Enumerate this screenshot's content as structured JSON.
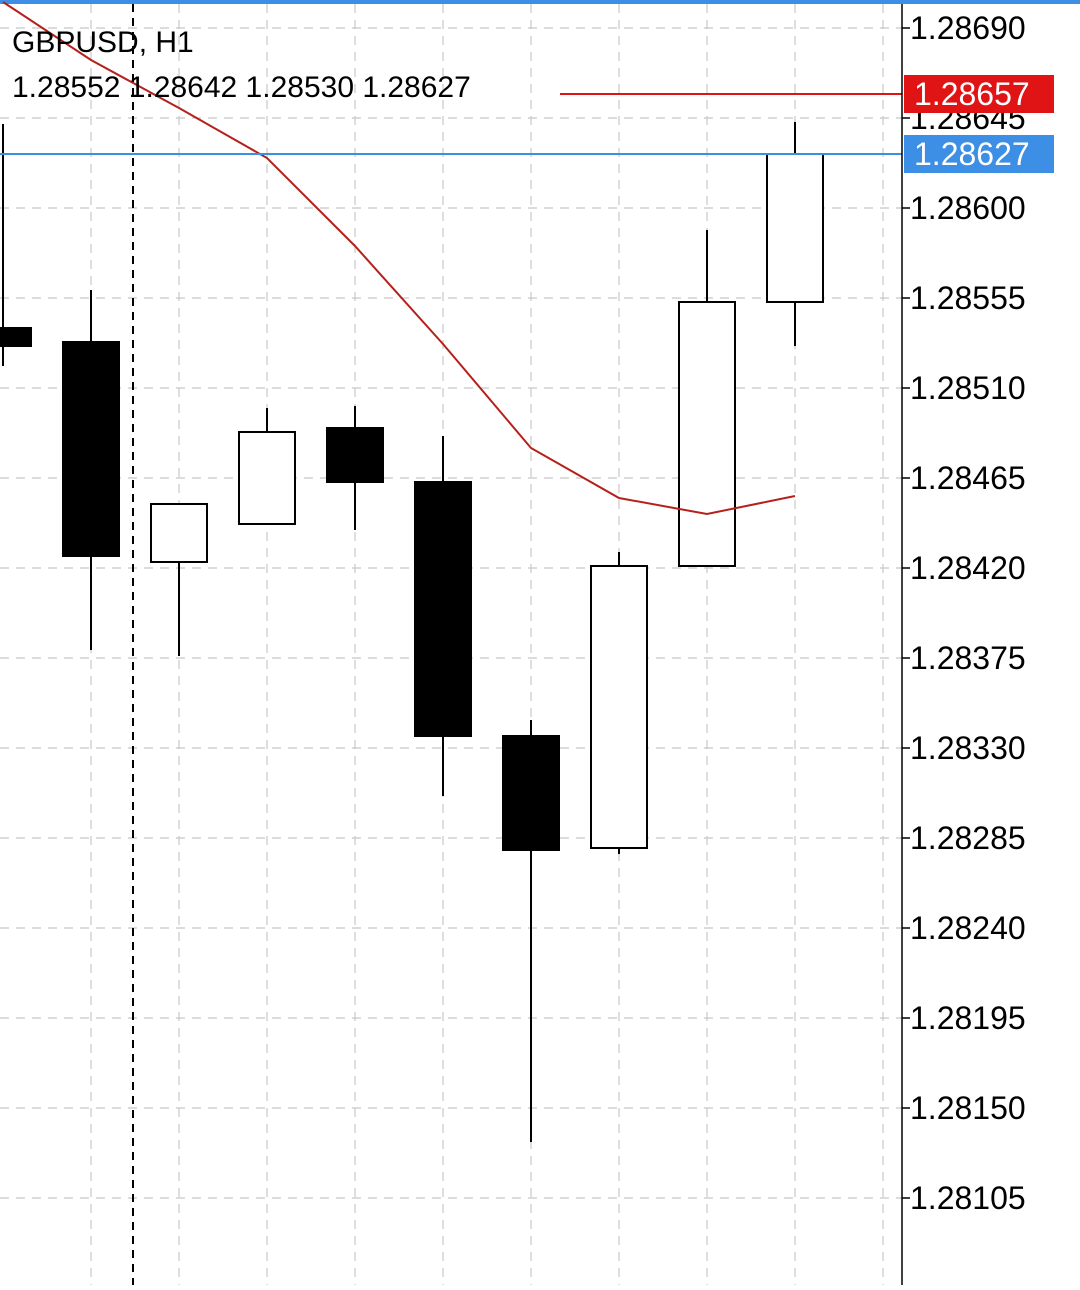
{
  "chart_data": {
    "type": "candlestick",
    "symbol": "GBPUSD, H1",
    "ohlc_readout": "1.28552 1.28642 1.28530 1.28627",
    "ylim": [
      1.2807,
      1.2871
    ],
    "y_ticks": [
      "1.28690",
      "1.28645",
      "1.28600",
      "1.28555",
      "1.28510",
      "1.28465",
      "1.28420",
      "1.28375",
      "1.28330",
      "1.28285",
      "1.28240",
      "1.28195",
      "1.28150",
      "1.28105"
    ],
    "grid": true,
    "candles": [
      {
        "open": 1.2854,
        "high": 1.28642,
        "low": 1.28521,
        "close": 1.28531
      },
      {
        "open": 1.28533,
        "high": 1.28559,
        "low": 1.28379,
        "close": 1.28426
      },
      {
        "open": 1.28423,
        "high": 1.28452,
        "low": 1.28376,
        "close": 1.28452
      },
      {
        "open": 1.28442,
        "high": 1.285,
        "low": 1.28442,
        "close": 1.28488
      },
      {
        "open": 1.2849,
        "high": 1.28501,
        "low": 1.28439,
        "close": 1.28463
      },
      {
        "open": 1.28463,
        "high": 1.28486,
        "low": 1.28306,
        "close": 1.28336
      },
      {
        "open": 1.28336,
        "high": 1.28344,
        "low": 1.28133,
        "close": 1.28279
      },
      {
        "open": 1.2828,
        "high": 1.28428,
        "low": 1.28277,
        "close": 1.28421
      },
      {
        "open": 1.28421,
        "high": 1.28589,
        "low": 1.28421,
        "close": 1.28553
      },
      {
        "open": 1.28553,
        "high": 1.28643,
        "low": 1.28531,
        "close": 1.28627
      }
    ],
    "moving_average": {
      "color": "#b5201b",
      "values": [
        1.28703,
        1.28674,
        1.2865,
        1.28625,
        1.28581,
        1.28532,
        1.2848,
        1.28455,
        1.28447,
        1.28456
      ]
    },
    "price_lines": [
      {
        "label": "1.28657",
        "value": 1.28657,
        "color": "#e01414",
        "text_color": "#ffffff"
      },
      {
        "label": "1.28627",
        "value": 1.28627,
        "color": "#3d8fe6",
        "text_color": "#ffffff"
      }
    ],
    "period_separator_after_index": 1,
    "colors": {
      "bull_body": "#ffffff",
      "bear_body": "#000000",
      "wick": "#000000",
      "grid": "#c8c8c8",
      "text": "#000000"
    }
  }
}
